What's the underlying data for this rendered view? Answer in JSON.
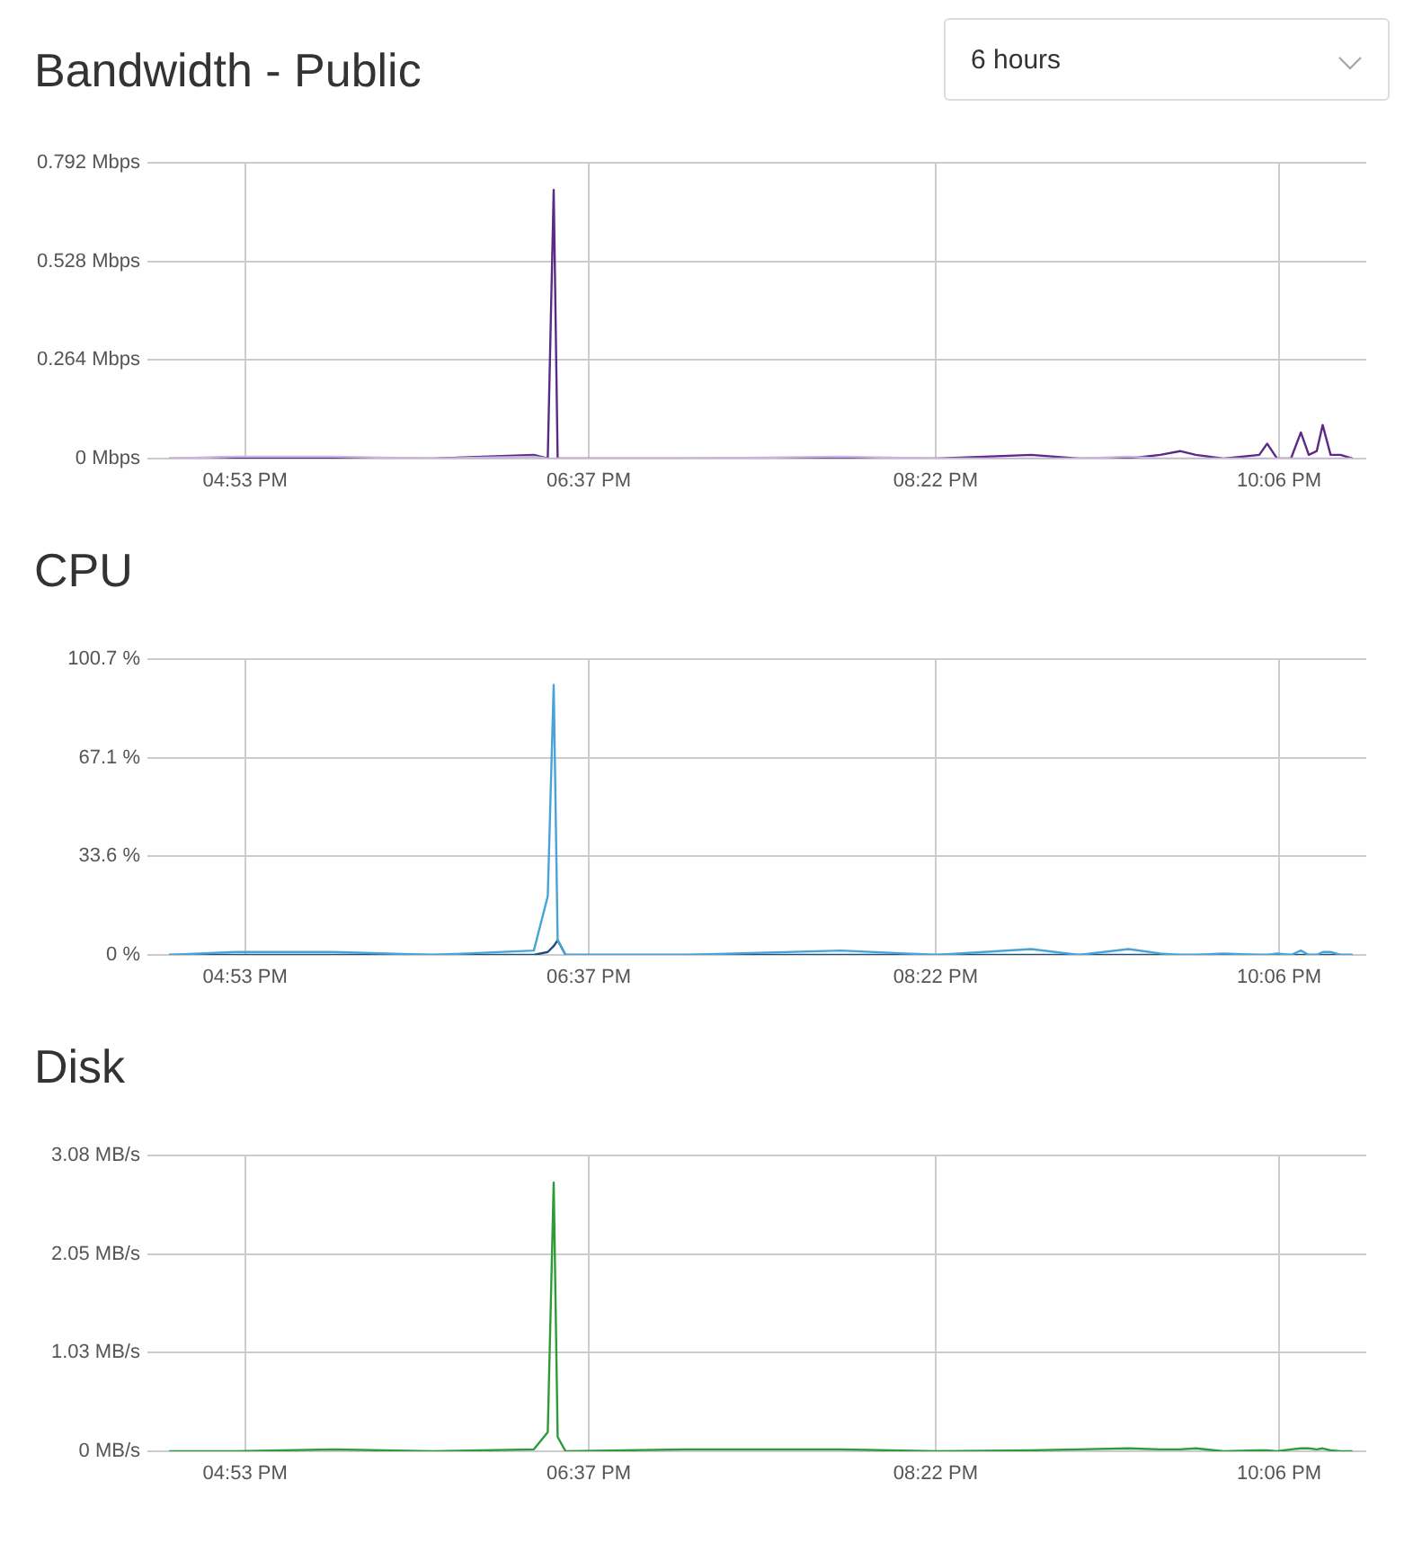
{
  "chart_data": [
    {
      "type": "line",
      "title": "Bandwidth - Public",
      "annotations": [
        "6 hours"
      ],
      "grid": true,
      "x": [
        16.5,
        16.83,
        17.33,
        17.83,
        18.34,
        18.41,
        18.44,
        18.46,
        18.5,
        19.1,
        19.89,
        20.37,
        20.85,
        21.09,
        21.34,
        21.5,
        21.6,
        21.68,
        21.82,
        22.0,
        22.04,
        22.09,
        22.16,
        22.21,
        22.25,
        22.29,
        22.32,
        22.36,
        22.41,
        22.47
      ],
      "series": [
        {
          "color": "#c9b3e0",
          "values": [
            0,
            0.005,
            0.005,
            0,
            0.005,
            0,
            0,
            0,
            0,
            0,
            0.005,
            0,
            0,
            0,
            0.005,
            0,
            0,
            0,
            0,
            0,
            0,
            0,
            0,
            0,
            0,
            0,
            0,
            0,
            0,
            0
          ]
        },
        {
          "color": "#5b2a86",
          "values": [
            0,
            0,
            0,
            0,
            0.01,
            0,
            0.72,
            0,
            0,
            0,
            0,
            0,
            0.01,
            0,
            0,
            0.01,
            0.02,
            0.01,
            0,
            0.01,
            0.04,
            0,
            0,
            0.07,
            0.01,
            0.02,
            0.09,
            0.01,
            0.01,
            0
          ]
        }
      ],
      "xlim": [
        16.39,
        22.54
      ],
      "xticks": [
        {
          "value": 16.883,
          "label": "04:53 PM"
        },
        {
          "value": 18.617,
          "label": "06:37 PM"
        },
        {
          "value": 20.367,
          "label": "08:22 PM"
        },
        {
          "value": 22.1,
          "label": "10:06 PM"
        }
      ],
      "ylim": [
        0,
        0.792
      ],
      "yticks": [
        {
          "value": 0,
          "label": "0 Mbps"
        },
        {
          "value": 0.264,
          "label": "0.264 Mbps"
        },
        {
          "value": 0.528,
          "label": "0.528 Mbps"
        },
        {
          "value": 0.792,
          "label": "0.792 Mbps"
        }
      ]
    },
    {
      "type": "line",
      "title": "CPU",
      "grid": true,
      "x": [
        16.5,
        16.83,
        17.33,
        17.83,
        18.34,
        18.41,
        18.44,
        18.46,
        18.5,
        19.1,
        19.89,
        20.37,
        20.85,
        21.09,
        21.34,
        21.5,
        21.6,
        21.68,
        21.82,
        22.0,
        22.04,
        22.09,
        22.16,
        22.21,
        22.25,
        22.29,
        22.32,
        22.36,
        22.41,
        22.47
      ],
      "series": [
        {
          "color": "#4aa3d6",
          "values": [
            0,
            1,
            1,
            0,
            1.5,
            20,
            92,
            5,
            0,
            0,
            1.5,
            0,
            2,
            0,
            2,
            0.5,
            0,
            0,
            0.5,
            0,
            0,
            0.5,
            0,
            1.5,
            0,
            0,
            1,
            1,
            0,
            0
          ]
        },
        {
          "color": "#1f4e79",
          "values": [
            0,
            0,
            0,
            0,
            0,
            1,
            3,
            5,
            0,
            0,
            0,
            0,
            0,
            0,
            0,
            0,
            0,
            0,
            0,
            0,
            0,
            0,
            0,
            0,
            0,
            0,
            0,
            0,
            0,
            0
          ]
        }
      ],
      "xlim": [
        16.39,
        22.54
      ],
      "xticks": [
        {
          "value": 16.883,
          "label": "04:53 PM"
        },
        {
          "value": 18.617,
          "label": "06:37 PM"
        },
        {
          "value": 20.367,
          "label": "08:22 PM"
        },
        {
          "value": 22.1,
          "label": "10:06 PM"
        }
      ],
      "ylim": [
        0,
        100.7
      ],
      "yticks": [
        {
          "value": 0,
          "label": "0 %"
        },
        {
          "value": 33.6,
          "label": "33.6 %"
        },
        {
          "value": 67.1,
          "label": "67.1 %"
        },
        {
          "value": 100.7,
          "label": "100.7 %"
        }
      ]
    },
    {
      "type": "line",
      "title": "Disk",
      "grid": true,
      "x": [
        16.5,
        16.83,
        17.33,
        17.83,
        18.34,
        18.41,
        18.44,
        18.46,
        18.5,
        19.1,
        19.89,
        20.37,
        20.85,
        21.09,
        21.34,
        21.5,
        21.6,
        21.68,
        21.82,
        22.0,
        22.04,
        22.09,
        22.16,
        22.21,
        22.25,
        22.29,
        22.32,
        22.36,
        22.41,
        22.47
      ],
      "series": [
        {
          "color": "#2e9a3a",
          "values": [
            0,
            0,
            0.02,
            0,
            0.02,
            0.2,
            2.8,
            0.15,
            0,
            0.02,
            0.02,
            0,
            0.01,
            0.02,
            0.03,
            0.02,
            0.02,
            0.03,
            0,
            0.01,
            0.01,
            0,
            0.02,
            0.03,
            0.03,
            0.02,
            0.03,
            0.01,
            0,
            0
          ]
        }
      ],
      "xlim": [
        16.39,
        22.54
      ],
      "xticks": [
        {
          "value": 16.883,
          "label": "04:53 PM"
        },
        {
          "value": 18.617,
          "label": "06:37 PM"
        },
        {
          "value": 20.367,
          "label": "08:22 PM"
        },
        {
          "value": 22.1,
          "label": "10:06 PM"
        }
      ],
      "ylim": [
        0,
        3.08
      ],
      "yticks": [
        {
          "value": 0,
          "label": "0 MB/s"
        },
        {
          "value": 1.03,
          "label": "1.03 MB/s"
        },
        {
          "value": 2.05,
          "label": "2.05 MB/s"
        },
        {
          "value": 3.08,
          "label": "3.08 MB/s"
        }
      ]
    }
  ]
}
